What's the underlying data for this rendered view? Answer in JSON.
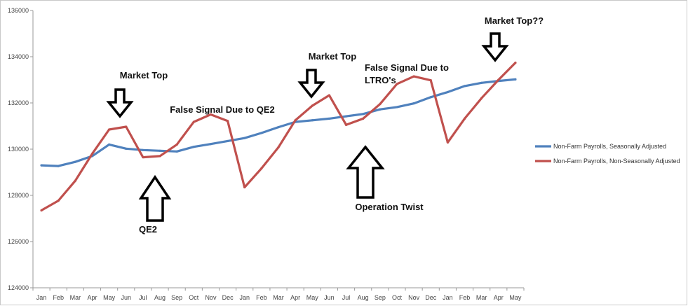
{
  "chart_data": {
    "type": "line",
    "categories": [
      "Jan",
      "Feb",
      "Mar",
      "Apr",
      "May",
      "Jun",
      "Jul",
      "Aug",
      "Sep",
      "Oct",
      "Nov",
      "Dec",
      "Jan",
      "Feb",
      "Mar",
      "Apr",
      "May",
      "Jun",
      "Jul",
      "Aug",
      "Sep",
      "Oct",
      "Nov",
      "Dec",
      "Jan",
      "Feb",
      "Mar",
      "Apr",
      "May"
    ],
    "ylim": [
      124000,
      136000
    ],
    "yticks": [
      "124000",
      "126000",
      "128000",
      "130000",
      "132000",
      "134000",
      "136000"
    ],
    "grid": false,
    "legend_position": "right",
    "series": [
      {
        "name": "Non-Farm Payrolls, Seasonally Adjusted",
        "color": "#4f81bd",
        "values": [
          129300,
          129270,
          129450,
          129700,
          130200,
          130020,
          129960,
          129930,
          129900,
          130100,
          130220,
          130350,
          130480,
          130700,
          130950,
          131180,
          131250,
          131320,
          131420,
          131520,
          131720,
          131820,
          131980,
          132250,
          132470,
          132730,
          132870,
          132950,
          133020
        ]
      },
      {
        "name": "Non-Farm Payrolls, Non-Seasonally Adjusted",
        "color": "#c0504d",
        "values": [
          127350,
          127770,
          128630,
          129800,
          130850,
          130970,
          129650,
          129700,
          130200,
          131180,
          131500,
          131220,
          128350,
          129170,
          130080,
          131250,
          131880,
          132330,
          131050,
          131320,
          131950,
          132820,
          133150,
          132980,
          130290,
          131320,
          132210,
          133000,
          133740
        ]
      }
    ],
    "annotations": [
      {
        "text": "Market Top",
        "direction": "down",
        "index": 5
      },
      {
        "text": "QE2",
        "direction": "up",
        "index": 7
      },
      {
        "text": "False Signal Due to QE2",
        "direction": "none",
        "index": 11
      },
      {
        "text": "Market Top",
        "direction": "down",
        "index": 16
      },
      {
        "text": "False Signal Due to",
        "direction": "none",
        "index": 22
      },
      {
        "text": "LTRO's",
        "direction": "none",
        "index": 20
      },
      {
        "text": "Operation Twist",
        "direction": "up",
        "index": 19
      },
      {
        "text": "Market Top??",
        "direction": "down",
        "index": 27
      }
    ]
  }
}
